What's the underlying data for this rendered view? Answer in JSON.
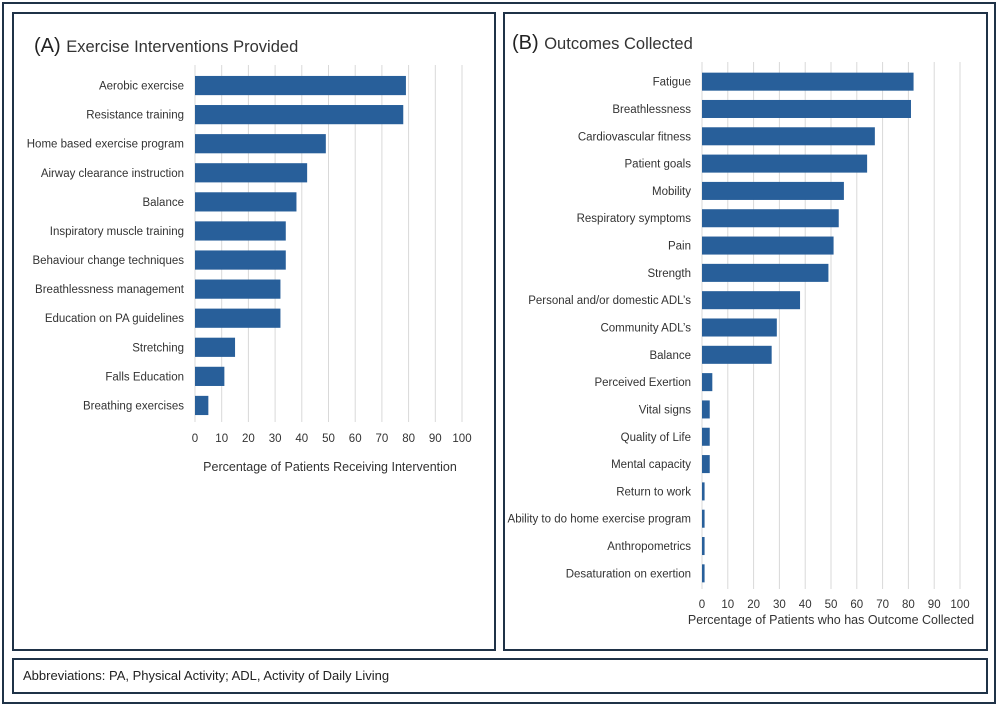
{
  "chart_data": [
    {
      "panel": "A",
      "type": "bar",
      "orientation": "horizontal",
      "title_label": "(A)",
      "title": "Exercise Interventions Provided",
      "xlabel": "Percentage of Patients Receiving Intervention",
      "ylabel": "",
      "xlim": [
        0,
        100
      ],
      "xticks": [
        0,
        10,
        20,
        30,
        40,
        50,
        60,
        70,
        80,
        90,
        100
      ],
      "grid": true,
      "bar_color": "#285f9a",
      "categories": [
        "Aerobic exercise",
        "Resistance training",
        "Home based exercise program",
        "Airway clearance instruction",
        "Balance",
        "Inspiratory muscle training",
        "Behaviour change techniques",
        "Breathlessness management",
        "Education on PA guidelines",
        "Stretching",
        "Falls Education",
        "Breathing exercises"
      ],
      "values": [
        79,
        78,
        49,
        42,
        38,
        34,
        34,
        32,
        32,
        15,
        11,
        5
      ]
    },
    {
      "panel": "B",
      "type": "bar",
      "orientation": "horizontal",
      "title_label": "(B)",
      "title": "Outcomes Collected",
      "xlabel": "Percentage of Patients who has Outcome Collected",
      "ylabel": "",
      "xlim": [
        0,
        100
      ],
      "xticks": [
        0,
        10,
        20,
        30,
        40,
        50,
        60,
        70,
        80,
        90,
        100
      ],
      "grid": true,
      "bar_color": "#285f9a",
      "categories": [
        "Fatigue",
        "Breathlessness",
        "Cardiovascular fitness",
        "Patient goals",
        "Mobility",
        "Respiratory symptoms",
        "Pain",
        "Strength",
        "Personal and/or domestic ADL’s",
        "Community ADL’s",
        "Balance",
        "Perceived Exertion",
        "Vital signs",
        "Quality of Life",
        "Mental capacity",
        "Return to work",
        "Ability to do home exercise program",
        "Anthropometrics",
        "Desaturation on exertion"
      ],
      "values": [
        82,
        81,
        67,
        64,
        55,
        53,
        51,
        49,
        38,
        29,
        27,
        4,
        3,
        3,
        3,
        1,
        1,
        1,
        1
      ]
    }
  ],
  "footer": {
    "abbreviations": "Abbreviations: PA, Physical Activity; ADL, Activity of Daily Living"
  },
  "colors": {
    "border": "#1f3247",
    "bar": "#285f9a",
    "grid": "#d9d9d9"
  }
}
